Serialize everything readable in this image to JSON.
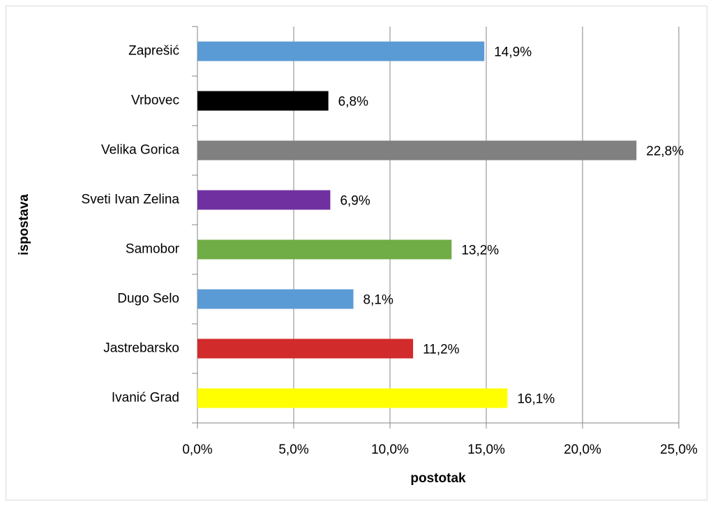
{
  "chart_data": {
    "type": "hbar",
    "xlabel": "postotak",
    "ylabel": "ispostava",
    "categories": [
      "Zaprešić",
      "Vrbovec",
      "Velika Gorica",
      "Sveti Ivan Zelina",
      "Samobor",
      "Dugo Selo",
      "Jastrebarsko",
      "Ivanić Grad"
    ],
    "values": [
      14.9,
      6.8,
      22.8,
      6.9,
      13.2,
      8.1,
      11.2,
      16.1
    ],
    "value_labels": [
      "14,9%",
      "6,8%",
      "22,8%",
      "6,9%",
      "13,2%",
      "8,1%",
      "11,2%",
      "16,1%"
    ],
    "colors": [
      "#5b9bd5",
      "#000000",
      "#808080",
      "#7030a0",
      "#70ad47",
      "#5b9bd5",
      "#d22b2b",
      "#ffff00"
    ],
    "xlim": [
      0,
      25
    ],
    "xticks": [
      {
        "value": 0,
        "label": "0,0%"
      },
      {
        "value": 5,
        "label": "5,0%"
      },
      {
        "value": 10,
        "label": "10,0%"
      },
      {
        "value": 15,
        "label": "15,0%"
      },
      {
        "value": 20,
        "label": "20,0%"
      },
      {
        "value": 25,
        "label": "25,0%"
      }
    ],
    "grid": true
  }
}
